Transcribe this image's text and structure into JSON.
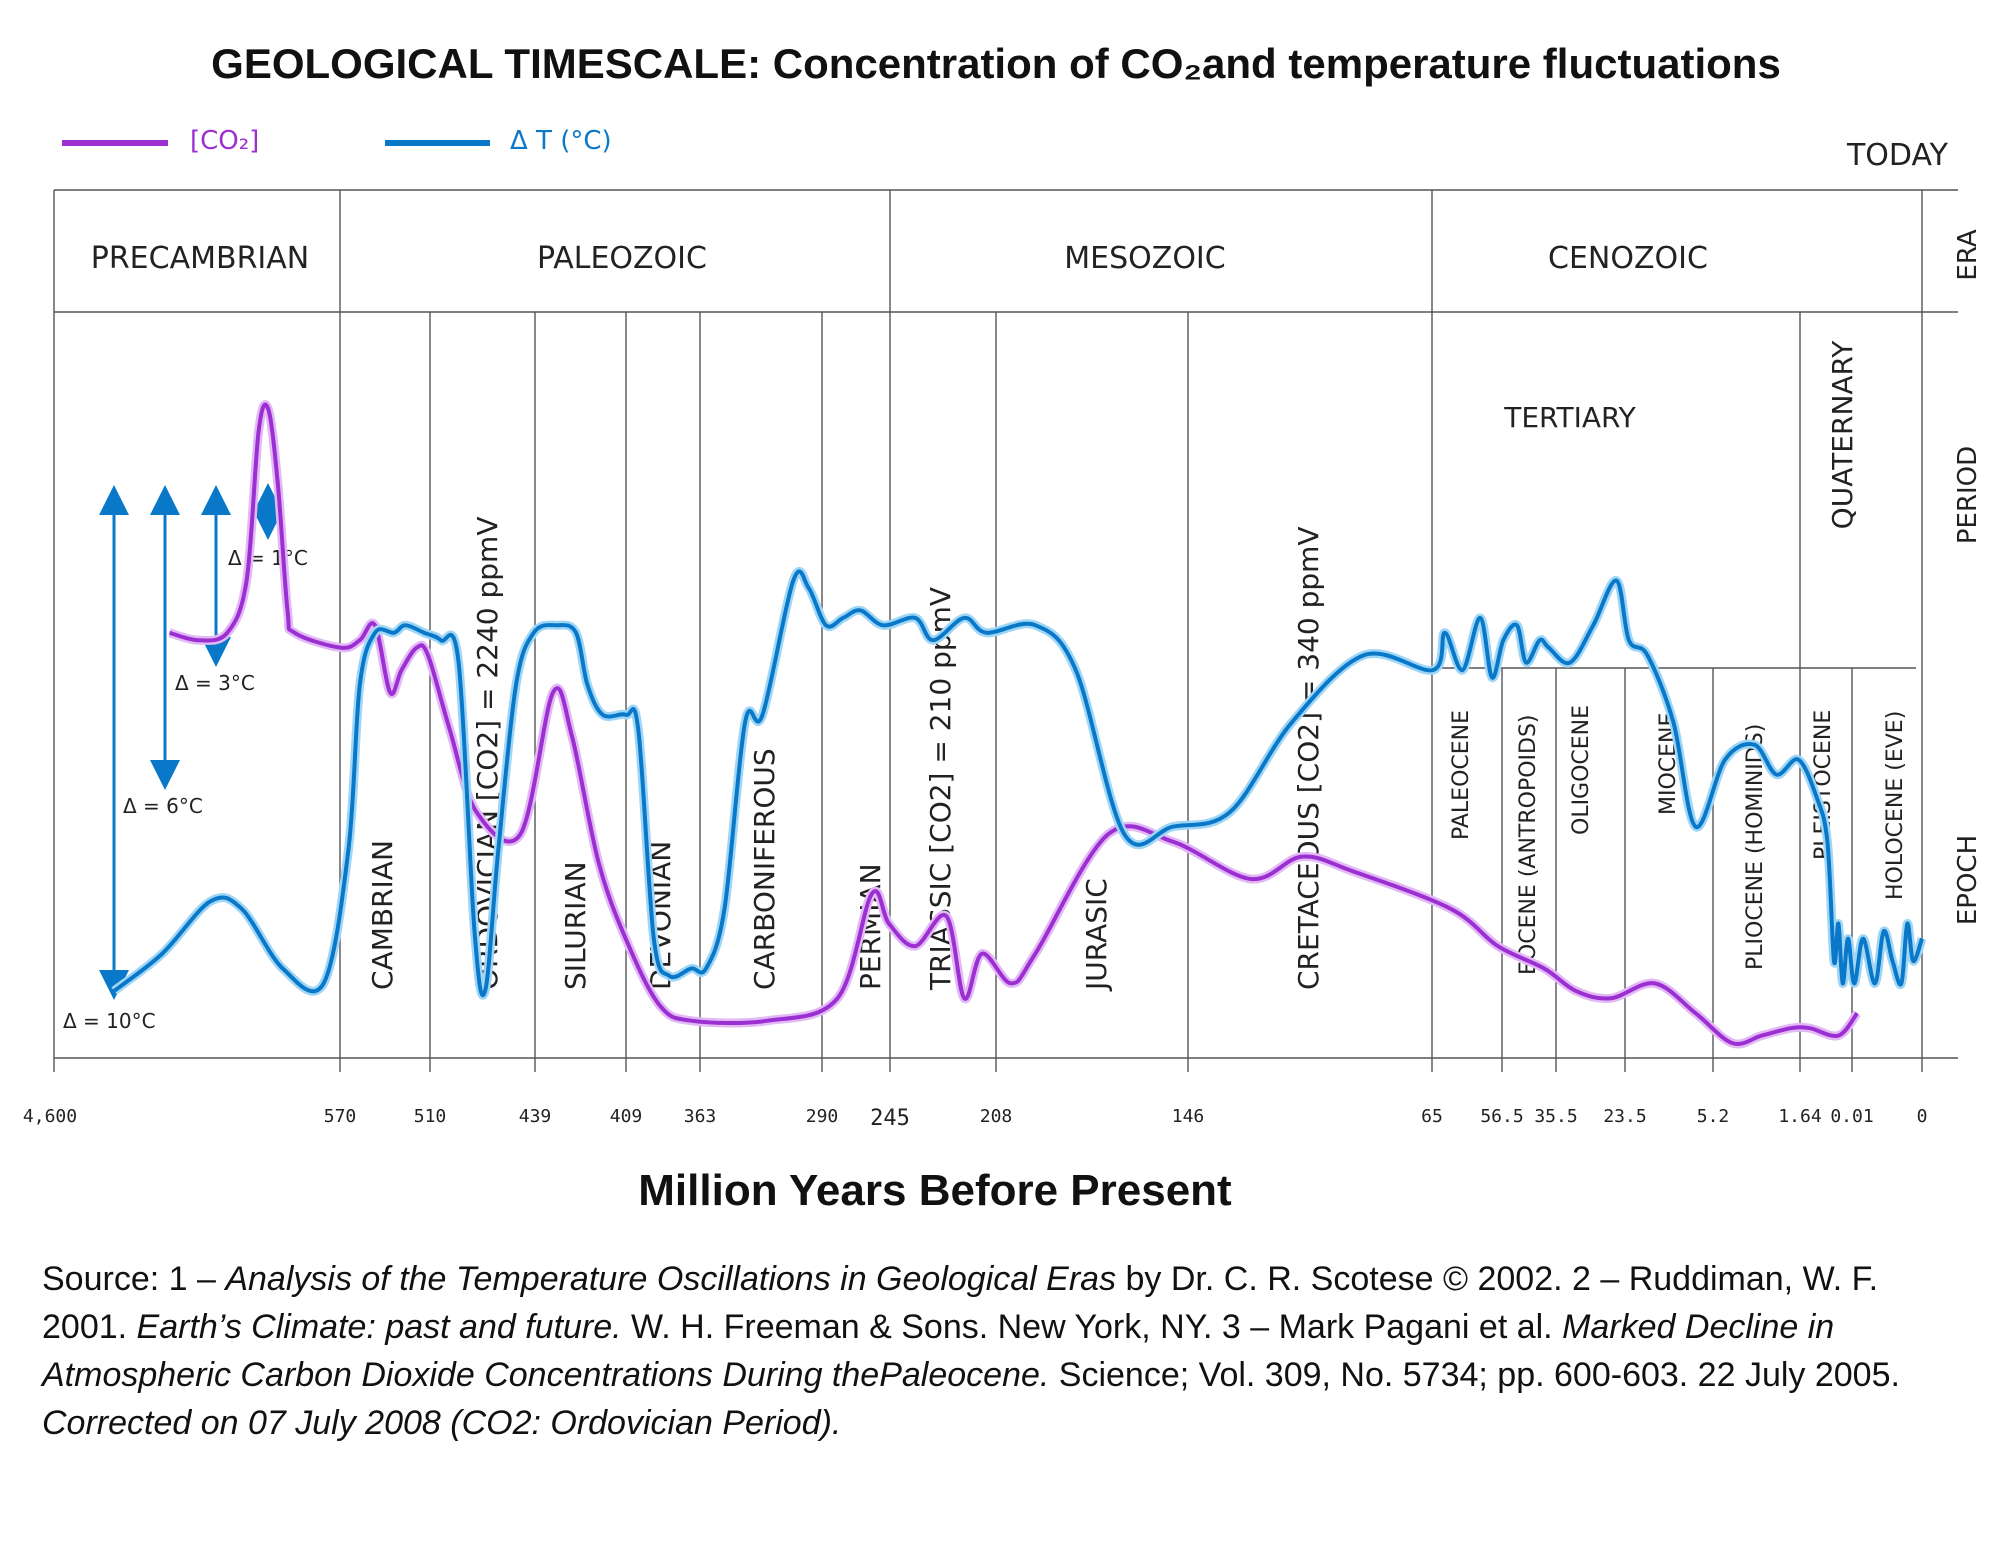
{
  "chart_data": {
    "type": "line",
    "title": "GEOLOGICAL TIMESCALE: Concentration of CO₂and temperature fluctuations",
    "xlabel": "Million Years Before Present",
    "today_label": "TODAY",
    "legend": [
      {
        "name": "[CO₂]",
        "color": "#9b2fd1"
      },
      {
        "name": "Δ T (°C)",
        "color": "#0a78c8"
      }
    ],
    "band_labels": {
      "era": "ERA",
      "period": "PERIOD",
      "epoch": "EPOCH"
    },
    "x_ticks": [
      "4,600",
      "570",
      "510",
      "439",
      "409",
      "363",
      "290",
      "245",
      "208",
      "146",
      "65",
      "56.5",
      "35.5",
      "23.5",
      "5.2",
      "1.64",
      "0.01",
      "0"
    ],
    "eras": [
      "PRECAMBRIAN",
      "PALEOZOIC",
      "MESOZOIC",
      "CENOZOIC"
    ],
    "periods": [
      "CAMBRIAN",
      "ORDOVICIAN [CO2] = 2240 ppmV",
      "SILURIAN",
      "DEVONIAN",
      "CARBONIFEROUS",
      "PERMIAN",
      "TRIASSIC [CO2] = 210 ppmV",
      "JURASIC",
      "CRETACEOUS [CO2] = 340 ppmV"
    ],
    "tertiary_label": "TERTIARY",
    "quaternary_label": "QUATERNARY",
    "epochs": [
      "PALEOCENE",
      "EOCENE (ANTROPOIDS)",
      "OLIGOCENE",
      "MIOCENE",
      "PLIOCENE (HOMINIDS)",
      "PLEISTOCENE",
      "HOLOCENE (EVE)"
    ],
    "delta_labels": [
      "Δ = 1°C",
      "Δ = 3°C",
      "Δ = 6°C",
      "Δ = 10°C"
    ],
    "series": [
      {
        "name": "[CO₂]",
        "note": "x = position index along the (non-linear) time axis (tick 0 = 4,600 Ma ... tick 17 = 0 Ma); y = relative level 0 (bottom) to 100 (top)",
        "points": [
          [
            0.48,
            57
          ],
          [
            0.6,
            56
          ],
          [
            0.72,
            57
          ],
          [
            0.8,
            64
          ],
          [
            0.85,
            84
          ],
          [
            0.89,
            87
          ],
          [
            0.93,
            77
          ],
          [
            0.97,
            60
          ],
          [
            1.0,
            57
          ],
          [
            1.2,
            55
          ],
          [
            1.45,
            56
          ],
          [
            1.65,
            58
          ],
          [
            1.85,
            49
          ],
          [
            2.0,
            52
          ],
          [
            2.2,
            55
          ],
          [
            2.35,
            54
          ],
          [
            2.6,
            44
          ],
          [
            2.9,
            33
          ],
          [
            3.4,
            30
          ],
          [
            3.8,
            49
          ],
          [
            4.05,
            43
          ],
          [
            4.4,
            26
          ],
          [
            4.8,
            15
          ],
          [
            5.3,
            7
          ],
          [
            5.8,
            5
          ],
          [
            6.6,
            5
          ],
          [
            7.4,
            8
          ],
          [
            8.0,
            22
          ],
          [
            8.3,
            18
          ],
          [
            8.6,
            15
          ],
          [
            8.95,
            19
          ],
          [
            9.15,
            8
          ],
          [
            9.35,
            14
          ],
          [
            9.6,
            10
          ],
          [
            9.75,
            14
          ],
          [
            10.2,
            30
          ],
          [
            10.6,
            29
          ],
          [
            11.0,
            24
          ],
          [
            11.25,
            27
          ],
          [
            11.5,
            25
          ],
          [
            12.2,
            20
          ],
          [
            13.0,
            15
          ],
          [
            14.0,
            12
          ],
          [
            14.6,
            9
          ],
          [
            15.2,
            8
          ],
          [
            15.85,
            10
          ],
          [
            16.4,
            6
          ],
          [
            16.9,
            2
          ],
          [
            17.3,
            3
          ],
          [
            17.7,
            4
          ],
          [
            18.05,
            4
          ],
          [
            18.7,
            3
          ],
          [
            19.1,
            6
          ]
        ]
      },
      {
        "name": "Δ T (°C)",
        "note": "x = position index along the (non-linear) time axis; y = relative level 0 (bottom) to 100 (top)",
        "points": [
          [
            0.25,
            9
          ],
          [
            0.45,
            14
          ],
          [
            0.65,
            21
          ],
          [
            0.78,
            20
          ],
          [
            0.95,
            12
          ],
          [
            1.12,
            10
          ],
          [
            1.3,
            28
          ],
          [
            1.45,
            50
          ],
          [
            1.65,
            57
          ],
          [
            1.9,
            57
          ],
          [
            2.05,
            58
          ],
          [
            2.3,
            57
          ],
          [
            2.5,
            56
          ],
          [
            2.7,
            53
          ],
          [
            2.88,
            17
          ],
          [
            3.0,
            9
          ],
          [
            3.15,
            28
          ],
          [
            3.35,
            50
          ],
          [
            3.55,
            57
          ],
          [
            3.85,
            58
          ],
          [
            4.1,
            57
          ],
          [
            4.25,
            50
          ],
          [
            4.45,
            46
          ],
          [
            4.75,
            46
          ],
          [
            4.95,
            44
          ],
          [
            5.2,
            16
          ],
          [
            5.45,
            11
          ],
          [
            5.8,
            12
          ],
          [
            6.0,
            12
          ],
          [
            6.18,
            20
          ],
          [
            6.38,
            45
          ],
          [
            6.55,
            46
          ],
          [
            6.85,
            64
          ],
          [
            7.0,
            63
          ],
          [
            7.2,
            58
          ],
          [
            7.5,
            59
          ],
          [
            7.8,
            60
          ],
          [
            8.2,
            58
          ],
          [
            8.6,
            59
          ],
          [
            8.8,
            56
          ],
          [
            9.15,
            59
          ],
          [
            9.4,
            57
          ],
          [
            9.75,
            58
          ],
          [
            10.0,
            52
          ],
          [
            10.3,
            30
          ],
          [
            10.6,
            31
          ],
          [
            10.9,
            33
          ],
          [
            11.2,
            45
          ],
          [
            11.55,
            54
          ],
          [
            11.9,
            52
          ],
          [
            12.1,
            57
          ],
          [
            12.4,
            52
          ],
          [
            12.7,
            59
          ],
          [
            12.9,
            51
          ],
          [
            13.1,
            56
          ],
          [
            13.4,
            58
          ],
          [
            13.6,
            53
          ],
          [
            13.9,
            56
          ],
          [
            14.1,
            55
          ],
          [
            14.5,
            53
          ],
          [
            14.9,
            58
          ],
          [
            15.3,
            64
          ],
          [
            15.5,
            56
          ],
          [
            15.75,
            54
          ],
          [
            16.1,
            45
          ],
          [
            16.4,
            31
          ],
          [
            16.8,
            40
          ],
          [
            17.2,
            42
          ],
          [
            17.5,
            38
          ],
          [
            17.8,
            40
          ],
          [
            18.2,
            35
          ],
          [
            18.45,
            29
          ],
          [
            18.6,
            13
          ],
          [
            18.7,
            18
          ],
          [
            18.8,
            10
          ],
          [
            18.92,
            16
          ],
          [
            19.05,
            10
          ],
          [
            19.2,
            16
          ],
          [
            19.4,
            10
          ],
          [
            19.55,
            17
          ],
          [
            19.7,
            13
          ],
          [
            19.85,
            10
          ],
          [
            19.95,
            18
          ],
          [
            20.05,
            13
          ],
          [
            20.2,
            16
          ]
        ]
      }
    ]
  },
  "source": {
    "p1": "Source: 1 – ",
    "i1": "Analysis of the Temperature Oscillations in Geological Eras",
    "p2": " by Dr. C. R. Scotese © 2002. 2 – Ruddiman, W. F. 2001. ",
    "i2": "Earth’s Climate: past and future.",
    "p3": " W. H. Freeman & Sons. New York, NY. 3 – Mark Pagani et al. ",
    "i3": "Marked Decline in Atmospheric Carbon Dioxide Concentrations During thePaleocene.",
    "p4": " Science; Vol. 309, No. 5734; pp. 600-603. 22 July 2005.  ",
    "i4": "Corrected on 07 July 2008 (CO2: Ordovician Period)."
  }
}
